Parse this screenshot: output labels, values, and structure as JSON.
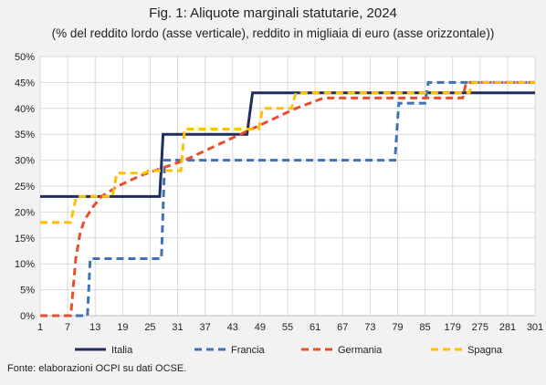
{
  "chart_data": {
    "type": "line",
    "title": "Fig. 1: Aliquote marginali statutarie, 2024",
    "subtitle": "(% del reddito lordo (asse verticale), reddito in migliaia di euro (asse orizzontale))",
    "xlabel": "",
    "ylabel": "",
    "x_tick_labels": [
      "1",
      "7",
      "13",
      "19",
      "25",
      "31",
      "37",
      "43",
      "49",
      "55",
      "61",
      "67",
      "73",
      "79",
      "85",
      "179",
      "275",
      "281",
      "301"
    ],
    "y_tick_labels": [
      "0%",
      "5%",
      "10%",
      "15%",
      "20%",
      "25%",
      "30%",
      "35%",
      "40%",
      "45%",
      "50%"
    ],
    "ylim": [
      0,
      50
    ],
    "grid": true,
    "legend_position": "bottom",
    "series": [
      {
        "name": "Italia",
        "color": "#1f2e5a",
        "style": "solid",
        "points": [
          [
            0,
            23
          ],
          [
            21.5,
            23
          ],
          [
            22.1,
            35
          ],
          [
            37.2,
            35
          ],
          [
            38.2,
            43
          ],
          [
            89,
            43
          ]
        ]
      },
      {
        "name": "Francia",
        "color": "#3f73b5",
        "style": "dashed",
        "points": [
          [
            0,
            0
          ],
          [
            8.5,
            0
          ],
          [
            9,
            11
          ],
          [
            21.8,
            11
          ],
          [
            22.4,
            30
          ],
          [
            63.8,
            30
          ],
          [
            64.5,
            41
          ],
          [
            69.2,
            41
          ],
          [
            69.8,
            45
          ],
          [
            89,
            45
          ]
        ]
      },
      {
        "name": "Germania",
        "color": "#e8502d",
        "style": "dashed",
        "points": [
          [
            0,
            0
          ],
          [
            5.5,
            0
          ],
          [
            6.4,
            11
          ],
          [
            7.2,
            16
          ],
          [
            8,
            18.5
          ],
          [
            9.5,
            21
          ],
          [
            11,
            23
          ],
          [
            14,
            25
          ],
          [
            18,
            27
          ],
          [
            22,
            28.5
          ],
          [
            26,
            30
          ],
          [
            31,
            32.5
          ],
          [
            36,
            35
          ],
          [
            41,
            37.5
          ],
          [
            46,
            40
          ],
          [
            51,
            42
          ],
          [
            57,
            42
          ],
          [
            70,
            42
          ],
          [
            76,
            42
          ],
          [
            76.6,
            45
          ],
          [
            89,
            45
          ]
        ]
      },
      {
        "name": "Spagna",
        "color": "#ffc000",
        "style": "dashed",
        "points": [
          [
            0,
            18
          ],
          [
            5.5,
            18
          ],
          [
            6.5,
            23
          ],
          [
            13,
            23
          ],
          [
            13.8,
            27.5
          ],
          [
            18.8,
            27.5
          ],
          [
            19.5,
            28
          ],
          [
            25.3,
            28
          ],
          [
            26,
            36
          ],
          [
            39.3,
            36
          ],
          [
            40,
            40
          ],
          [
            45.2,
            40
          ],
          [
            46,
            43
          ],
          [
            77.2,
            43
          ],
          [
            77.8,
            45
          ],
          [
            89,
            45
          ]
        ]
      }
    ]
  },
  "source_note": "Fonte: elaborazioni OCPI su dati OCSE."
}
